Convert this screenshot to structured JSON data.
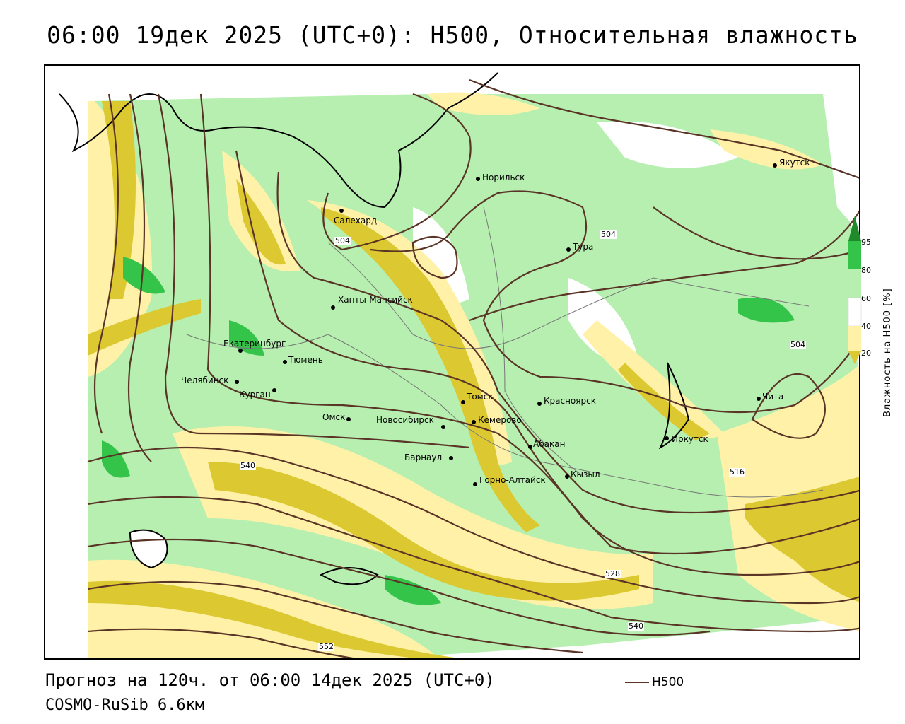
{
  "title": "06:00 19дек 2025 (UTC+0): H500, Относительная влажность",
  "footer": {
    "forecast": "Прогноз на 120ч. от 06:00 14дек 2025 (UTC+0)",
    "model": "COSMO-RuSib 6.6км"
  },
  "series_key": {
    "label": "H500",
    "color": "#5a3426"
  },
  "legend": {
    "title": "Влажность на H500 [%]",
    "ticks": [
      "95",
      "80",
      "60",
      "40",
      "20"
    ],
    "bands": [
      {
        "range": "95+",
        "color": "#1f8a2c"
      },
      {
        "range": "80-95",
        "color": "#35c44a"
      },
      {
        "range": "60-80",
        "color": "#b6efb0"
      },
      {
        "range": "40-60",
        "color": "#ffffff"
      },
      {
        "range": "20-40",
        "color": "#fff2a8"
      },
      {
        "range": "<20",
        "color": "#dcc830"
      }
    ]
  },
  "cities": [
    {
      "name": "Салехард"
    },
    {
      "name": "Норильск"
    },
    {
      "name": "Якутск"
    },
    {
      "name": "Тура"
    },
    {
      "name": "Ханты-Мансийск"
    },
    {
      "name": "Екатеринбург"
    },
    {
      "name": "Тюмень"
    },
    {
      "name": "Челябинск"
    },
    {
      "name": "Курган"
    },
    {
      "name": "Омск"
    },
    {
      "name": "Новосибирск"
    },
    {
      "name": "Томск"
    },
    {
      "name": "Кемерово"
    },
    {
      "name": "Барнаул"
    },
    {
      "name": "Горно-Алтайск"
    },
    {
      "name": "Красноярск"
    },
    {
      "name": "Абакан"
    },
    {
      "name": "Кызыл"
    },
    {
      "name": "Иркутск"
    },
    {
      "name": "Чита"
    }
  ],
  "contour_labels": [
    "504",
    "504",
    "504",
    "516",
    "528",
    "540",
    "540",
    "552"
  ]
}
